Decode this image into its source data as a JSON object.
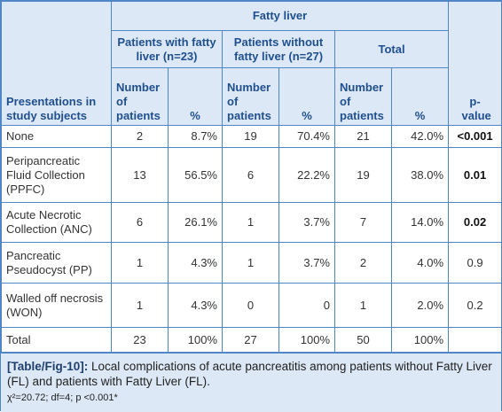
{
  "table": {
    "group_header": "Fatty liver",
    "row_header": "Presentations in study subjects",
    "p_header": "p-value",
    "subgroups": [
      "Patients with fatty liver (n=23)",
      "Patients without fatty liver (n=27)",
      "Total"
    ],
    "subcolumns": [
      [
        "Number of patients",
        "%"
      ],
      [
        "Number of patients",
        "%"
      ],
      [
        "Number of patients",
        "%"
      ]
    ],
    "rows": [
      [
        "None",
        "2",
        "8.7%",
        "19",
        "70.4%",
        "21",
        "42.0%",
        "<0.001"
      ],
      [
        "Peripancreatic Fluid Collection (PPFC)",
        "13",
        "56.5%",
        "6",
        "22.2%",
        "19",
        "38.0%",
        "0.01"
      ],
      [
        "Acute Necrotic Collection (ANC)",
        "6",
        "26.1%",
        "1",
        "3.7%",
        "7",
        "14.0%",
        "0.02"
      ],
      [
        "Pancreatic Pseudocyst (PP)",
        "1",
        "4.3%",
        "1",
        "3.7%",
        "2",
        "4.0%",
        "0.9"
      ],
      [
        "Walled off necrosis (WON)",
        "1",
        "4.3%",
        "0",
        "0",
        "1",
        "2.0%",
        "0.2"
      ],
      [
        "Total",
        "23",
        "100%",
        "27",
        "100%",
        "50",
        "100%",
        ""
      ]
    ]
  },
  "caption": {
    "label": "[Table/Fig-10]:",
    "text": "Local complications of acute pancreatitis among patients without Fatty Liver (FL) and patients with Fatty Liver (FL).",
    "stats": "χ²=20.72; df=4; p <0.001*"
  }
}
